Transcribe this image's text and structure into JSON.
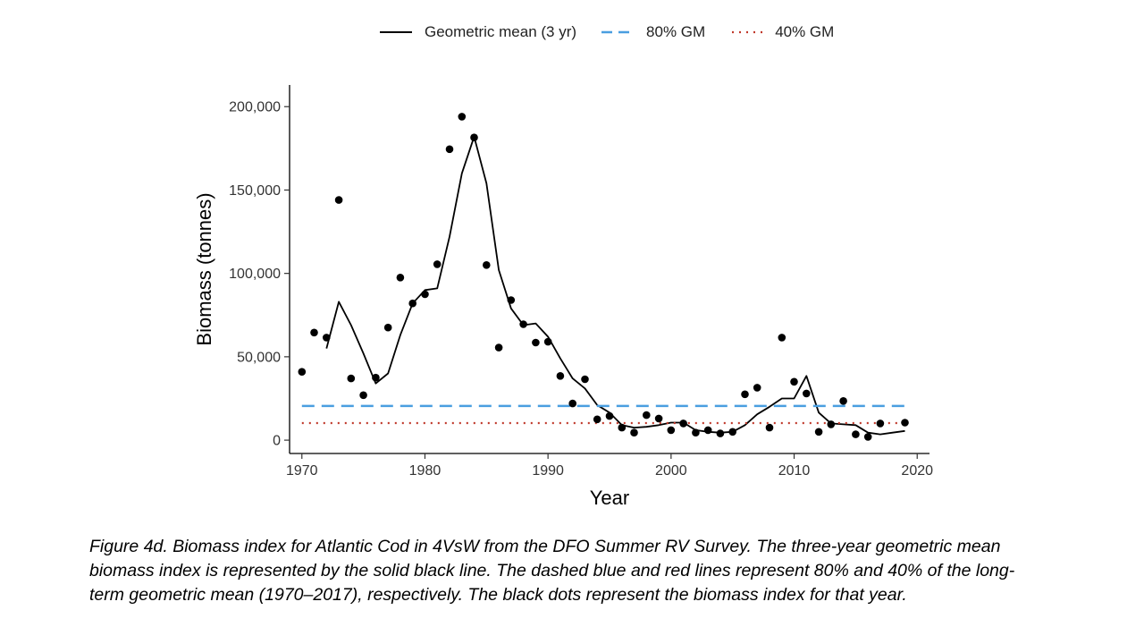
{
  "chart_data": {
    "type": "scatter",
    "xlabel": "Year",
    "ylabel": "Biomass (tonnes)",
    "xlim": [
      1969,
      2021
    ],
    "ylim": [
      -8000,
      213000
    ],
    "x_ticks": [
      1970,
      1980,
      1990,
      2000,
      2010,
      2020
    ],
    "y_ticks": [
      0,
      50000,
      100000,
      150000,
      200000
    ],
    "y_tick_labels": [
      "0",
      "50,000",
      "100,000",
      "150,000",
      "200,000"
    ],
    "grid": false,
    "legend_placement": "top",
    "legend": [
      {
        "label": "Geometric mean (3 yr)",
        "style": "solid",
        "color": "#000000"
      },
      {
        "label": "80% GM",
        "style": "dashed",
        "color": "#4a9ee0"
      },
      {
        "label": "40% GM",
        "style": "dotted",
        "color": "#c0392b"
      }
    ],
    "points": {
      "name": "Biomass index",
      "color": "#000000",
      "x": [
        1970,
        1971,
        1972,
        1973,
        1974,
        1975,
        1976,
        1977,
        1978,
        1979,
        1980,
        1981,
        1982,
        1983,
        1984,
        1985,
        1986,
        1987,
        1988,
        1989,
        1990,
        1991,
        1992,
        1993,
        1994,
        1995,
        1996,
        1997,
        1998,
        1999,
        2000,
        2001,
        2002,
        2003,
        2004,
        2005,
        2006,
        2007,
        2008,
        2009,
        2010,
        2011,
        2012,
        2013,
        2014,
        2015,
        2016,
        2017,
        2019
      ],
      "y": [
        41000,
        64500,
        61500,
        144000,
        37000,
        27000,
        37500,
        67500,
        97500,
        82000,
        87500,
        105500,
        174500,
        194000,
        181500,
        105000,
        55500,
        84000,
        69500,
        58500,
        59000,
        38500,
        22000,
        36500,
        12500,
        14500,
        7500,
        4500,
        15000,
        13000,
        6000,
        10000,
        4500,
        6000,
        4000,
        5000,
        27500,
        31500,
        7500,
        61500,
        35000,
        28000,
        5000,
        9500,
        23500,
        3500,
        2000,
        10000,
        10500
      ]
    },
    "series": [
      {
        "name": "Geometric mean (3 yr)",
        "style": "solid",
        "color": "#000000",
        "x": [
          1972,
          1973,
          1974,
          1975,
          1976,
          1977,
          1978,
          1979,
          1980,
          1981,
          1982,
          1983,
          1984,
          1985,
          1986,
          1987,
          1988,
          1989,
          1990,
          1991,
          1992,
          1993,
          1994,
          1995,
          1996,
          1997,
          1998,
          1999,
          2000,
          2001,
          2002,
          2003,
          2004,
          2005,
          2006,
          2007,
          2008,
          2009,
          2010,
          2011,
          2012,
          2013,
          2014,
          2015,
          2016,
          2017,
          2018,
          2019
        ],
        "y": [
          55000,
          83000,
          69000,
          52000,
          34000,
          40000,
          63000,
          82000,
          90000,
          91000,
          122000,
          160000,
          182000,
          154000,
          102000,
          79000,
          69000,
          70000,
          62000,
          49000,
          37000,
          31000,
          21000,
          16500,
          9000,
          7500,
          8000,
          9000,
          10500,
          10500,
          6000,
          5000,
          4500,
          5000,
          9000,
          15500,
          20000,
          25000,
          25000,
          38500,
          16500,
          10000,
          9500,
          9000,
          4500,
          3500,
          4500,
          5500
        ]
      },
      {
        "name": "80% GM",
        "style": "dashed",
        "color": "#4a9ee0",
        "x": [
          1970,
          2019
        ],
        "y": [
          20500,
          20500
        ]
      },
      {
        "name": "40% GM",
        "style": "dotted",
        "color": "#c0392b",
        "x": [
          1970,
          2019
        ],
        "y": [
          10250,
          10250
        ]
      }
    ]
  },
  "caption": "Figure 4d. Biomass index for Atlantic Cod in 4VsW from the DFO Summer RV Survey. The three-year geometric mean biomass index is represented by the solid black line. The dashed blue and red lines represent 80% and 40% of the long-term geometric mean (1970–2017), respectively. The black dots represent the biomass index for that year."
}
